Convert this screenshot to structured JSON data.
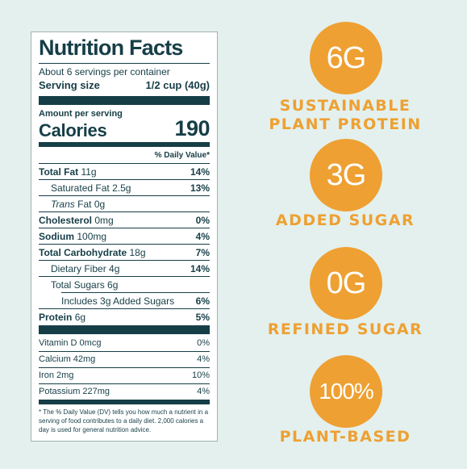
{
  "nutrition": {
    "title": "Nutrition Facts",
    "servings": "About 6 servings per container",
    "serving_size_label": "Serving size",
    "serving_size_value": "1/2 cup (40g)",
    "amount_per_serving": "Amount per serving",
    "calories_label": "Calories",
    "calories_value": "190",
    "dv_header": "% Daily Value*",
    "rows": [
      {
        "label": "Total Fat",
        "amount": "11g",
        "dv": "14%"
      },
      {
        "label": "Saturated Fat",
        "amount": "2.5g",
        "dv": "13%"
      },
      {
        "label": "Trans",
        "amount": "Fat 0g",
        "dv": ""
      },
      {
        "label": "Cholesterol",
        "amount": "0mg",
        "dv": "0%"
      },
      {
        "label": "Sodium",
        "amount": "100mg",
        "dv": "4%"
      },
      {
        "label": "Total Carbohydrate",
        "amount": "18g",
        "dv": "7%"
      },
      {
        "label": "Dietary Fiber",
        "amount": "4g",
        "dv": "14%"
      },
      {
        "label": "Total Sugars",
        "amount": "6g",
        "dv": ""
      },
      {
        "label": "Includes 3g Added Sugars",
        "amount": "",
        "dv": "6%"
      },
      {
        "label": "Protein",
        "amount": "6g",
        "dv": "5%"
      }
    ],
    "vitamins": [
      {
        "label": "Vitamin D 0mcg",
        "dv": "0%"
      },
      {
        "label": "Calcium 42mg",
        "dv": "4%"
      },
      {
        "label": "Iron 2mg",
        "dv": "10%"
      },
      {
        "label": "Potassium 227mg",
        "dv": "4%"
      }
    ],
    "footnote": "* The % Daily Value (DV) tells you how much a nutrient in a serving of food contributes to a daily diet. 2,000 calories a day is used for general nutrition advice."
  },
  "claims": [
    {
      "badge": "6G",
      "text": "SUSTAINABLE PLANT PROTEIN"
    },
    {
      "badge": "3G",
      "text": "ADDED SUGAR"
    },
    {
      "badge": "0G",
      "text": "REFINED SUGAR"
    },
    {
      "badge": "100%",
      "text": "PLANT-BASED"
    }
  ],
  "colors": {
    "background": "#e3f0ee",
    "label_ink": "#163e47",
    "accent": "#eea032"
  }
}
